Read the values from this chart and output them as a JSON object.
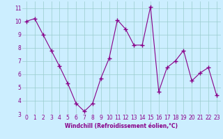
{
  "x": [
    0,
    1,
    2,
    3,
    4,
    5,
    6,
    7,
    8,
    9,
    10,
    11,
    12,
    13,
    14,
    15,
    16,
    17,
    18,
    19,
    20,
    21,
    22,
    23
  ],
  "y": [
    10.0,
    10.2,
    9.0,
    7.8,
    6.6,
    5.3,
    3.8,
    3.2,
    3.8,
    5.7,
    7.2,
    10.1,
    9.4,
    8.2,
    8.2,
    11.1,
    4.7,
    6.5,
    7.0,
    7.8,
    5.5,
    6.1,
    6.5,
    4.4
  ],
  "xlim": [
    -0.5,
    23.5
  ],
  "ylim": [
    3,
    11.5
  ],
  "yticks": [
    3,
    4,
    5,
    6,
    7,
    8,
    9,
    10,
    11
  ],
  "xticks": [
    0,
    1,
    2,
    3,
    4,
    5,
    6,
    7,
    8,
    9,
    10,
    11,
    12,
    13,
    14,
    15,
    16,
    17,
    18,
    19,
    20,
    21,
    22,
    23
  ],
  "xlabel": "Windchill (Refroidissement éolien,°C)",
  "line_color": "#880088",
  "marker": "+",
  "bg_color": "#cceeff",
  "grid_color": "#99cccc",
  "label_fontsize": 5.5,
  "tick_fontsize": 5.5
}
